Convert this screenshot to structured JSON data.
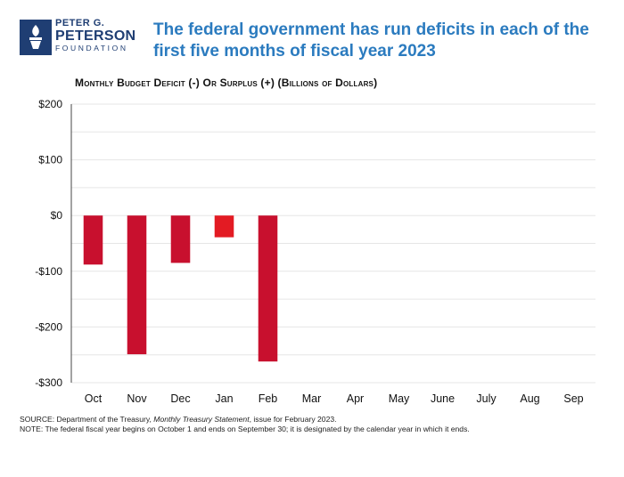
{
  "brand": {
    "line1": "PETER G.",
    "line2": "PETERSON",
    "line3": "FOUNDATION",
    "color": "#1f3e73"
  },
  "headline": "The federal government has run deficits in each of the first five months of fiscal year 2023",
  "chart_data": {
    "type": "bar",
    "title": "Monthly Budget Deficit (-) Or Surplus (+) (Billions of Dollars)",
    "xlabel": "",
    "ylabel": "",
    "categories": [
      "Oct",
      "Nov",
      "Dec",
      "Jan",
      "Feb",
      "Mar",
      "Apr",
      "May",
      "June",
      "July",
      "Aug",
      "Sep"
    ],
    "series": [
      {
        "values": [
          -88,
          -249,
          -85,
          -39,
          -262,
          null,
          null,
          null,
          null,
          null,
          null,
          null
        ]
      }
    ],
    "ylim": [
      -300,
      200
    ],
    "yticks": [
      200,
      100,
      0,
      -100,
      -200,
      -300
    ],
    "ytick_labels": [
      "$200",
      "$100",
      "$0",
      "-$100",
      "-$200",
      "-$300"
    ],
    "grid": true,
    "colors": {
      "bar": "#c8102e",
      "bar_highlight": "#e31b23",
      "grid": "#e6e6e6",
      "axis": "#444444"
    }
  },
  "footer": {
    "source_prefix": "SOURCE: Department of the Treasury, ",
    "source_title": "Monthly Treasury Statement",
    "source_suffix": ", issue for February 2023.",
    "note": "NOTE: The federal fiscal year begins on October 1 and ends on September 30; it is designated by the calendar year in which it ends."
  }
}
